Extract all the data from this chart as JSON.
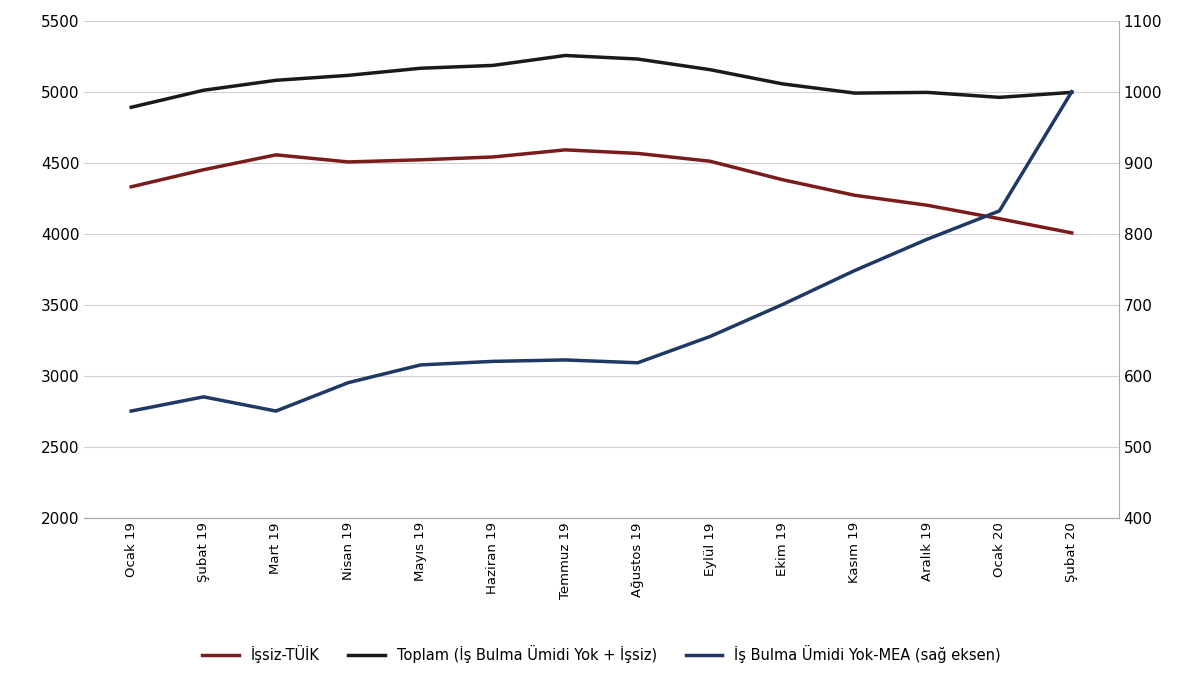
{
  "categories": [
    "Ocak 19",
    "Şubat 19",
    "Mart 19",
    "Nisan 19",
    "Mayıs 19",
    "Haziran 19",
    "Temmuz 19",
    "Ağustos 19",
    "Eylül 19",
    "Ekim 19",
    "Kasım 19",
    "Aralık 19",
    "Ocak 20",
    "Şubat 20"
  ],
  "issiz_tuik": [
    4330,
    4450,
    4555,
    4505,
    4520,
    4540,
    4590,
    4565,
    4510,
    4380,
    4270,
    4200,
    4105,
    4005
  ],
  "toplam": [
    4890,
    5010,
    5080,
    5115,
    5165,
    5185,
    5255,
    5230,
    5155,
    5055,
    4990,
    4995,
    4960,
    4995
  ],
  "is_bulma": [
    550,
    570,
    550,
    590,
    615,
    620,
    622,
    618,
    655,
    700,
    748,
    792,
    832,
    1000
  ],
  "issiz_color": "#7b1c1c",
  "toplam_color": "#1a1a1a",
  "is_bulma_color": "#1f3864",
  "left_ylim": [
    2000,
    5500
  ],
  "right_ylim": [
    400,
    1100
  ],
  "left_yticks": [
    2000,
    2500,
    3000,
    3500,
    4000,
    4500,
    5000,
    5500
  ],
  "right_yticks": [
    400,
    500,
    600,
    700,
    800,
    900,
    1000,
    1100
  ],
  "legend_labels": [
    "İşsiz-TÜİK",
    "Toplam (İş Bulma Ümidi Yok + İşsiz)",
    "İş Bulma Ümidi Yok-MEA (sağ eksen)"
  ],
  "linewidth": 2.5,
  "background_color": "#ffffff",
  "grid_color": "#d0d0d0"
}
